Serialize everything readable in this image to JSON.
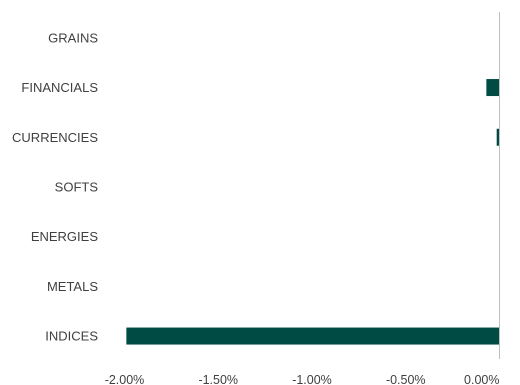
{
  "chart_data": {
    "type": "bar",
    "orientation": "horizontal",
    "categories": [
      "GRAINS",
      "FINANCIALS",
      "CURRENCIES",
      "SOFTS",
      "ENERGIES",
      "METALS",
      "INDICES"
    ],
    "values": [
      0.0,
      -0.07,
      -0.015,
      0.0,
      0.0,
      0.0,
      -1.99
    ],
    "value_unit": "%",
    "xlim": [
      -2.0,
      0.0
    ],
    "xticks": [
      -2.0,
      -1.5,
      -1.0,
      -0.5,
      0.0
    ],
    "xtick_labels": [
      "-2.00%",
      "-1.50%",
      "-1.00%",
      "-0.50%",
      "0.00%"
    ],
    "title": "",
    "xlabel": "",
    "ylabel": "",
    "grid": false,
    "legend": "none",
    "bar_color": "#004c45",
    "axis_color": "#bfbfbf",
    "text_color": "#404040"
  }
}
